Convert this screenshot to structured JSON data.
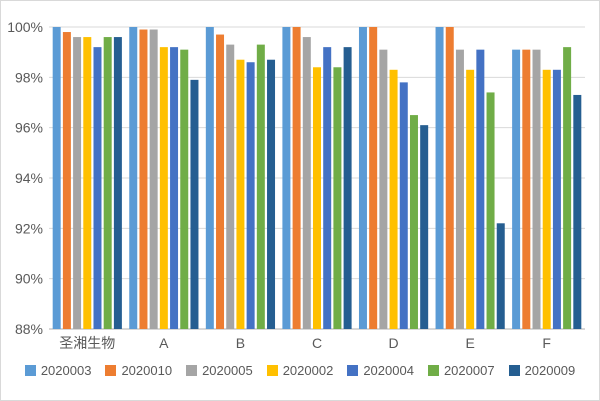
{
  "chart_data": {
    "type": "bar",
    "title": "",
    "xlabel": "",
    "ylabel": "",
    "categories": [
      "圣湘生物",
      "A",
      "B",
      "C",
      "D",
      "E",
      "F"
    ],
    "series": [
      {
        "name": "2020003",
        "color": "#5B9BD5",
        "values": [
          100,
          100,
          100,
          100,
          100,
          100,
          99.1
        ]
      },
      {
        "name": "2020010",
        "color": "#ED7D31",
        "values": [
          99.8,
          99.9,
          99.7,
          100,
          100,
          100,
          99.1
        ]
      },
      {
        "name": "2020005",
        "color": "#A5A5A5",
        "values": [
          99.6,
          99.9,
          99.3,
          99.6,
          99.1,
          99.1,
          99.1
        ]
      },
      {
        "name": "2020002",
        "color": "#FFC000",
        "values": [
          99.6,
          99.2,
          98.7,
          98.4,
          98.3,
          98.3,
          98.3
        ]
      },
      {
        "name": "2020004",
        "color": "#4472C4",
        "values": [
          99.2,
          99.2,
          98.6,
          99.2,
          97.8,
          99.1,
          98.3
        ]
      },
      {
        "name": "2020007",
        "color": "#70AD47",
        "values": [
          99.6,
          99.1,
          99.3,
          98.4,
          96.5,
          97.4,
          99.2
        ]
      },
      {
        "name": "2020009",
        "color": "#255E91",
        "values": [
          99.6,
          97.9,
          98.7,
          99.2,
          96.1,
          92.2,
          97.3
        ]
      }
    ],
    "ylim": [
      88,
      100
    ],
    "ytick_step": 2,
    "ytick_suffix": "%",
    "ytick_labels": [
      "88%",
      "90%",
      "92%",
      "94%",
      "96%",
      "98%",
      "100%"
    ],
    "grid": true,
    "legend_position": "bottom"
  },
  "colors": {
    "background": "#FFFFFF",
    "border": "#D9D9D9",
    "gridline": "#D9D9D9",
    "axis_line": "#BFBFBF",
    "text": "#595959"
  }
}
